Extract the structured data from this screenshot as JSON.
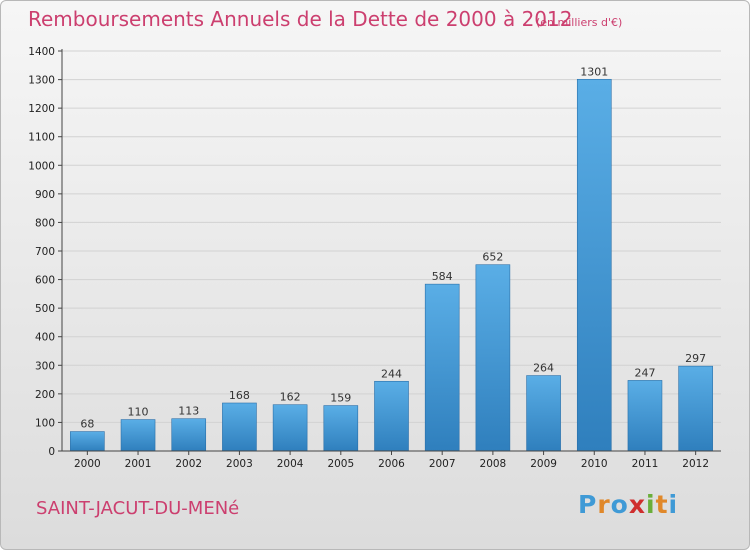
{
  "header": {
    "title": "Remboursements Annuels de la Dette de 2000 à 2012",
    "unit_note": "(en milliers d'€)"
  },
  "footer": {
    "commune": "SAINT-JACUT-DU-MENé",
    "logo_letters": [
      "P",
      "r",
      "o",
      "x",
      "i",
      "t",
      "i"
    ],
    "logo_colors": [
      "#3f9ad6",
      "#e0882a",
      "#3f9ad6",
      "#cf2e2e",
      "#6aae3a",
      "#e0882a",
      "#3f9ad6"
    ]
  },
  "colors": {
    "bar_top": "#5aaee6",
    "bar_bottom": "#2f7fbd",
    "bar_stroke": "#2a6fa8",
    "grid": "#d2d2d2",
    "axis": "#444444",
    "title": "#cc3f6f"
  },
  "chart_data": {
    "type": "bar",
    "title": "Remboursements Annuels de la Dette de 2000 à 2012",
    "subtitle": "(en milliers d'€)",
    "xlabel": "",
    "ylabel": "",
    "categories": [
      "2000",
      "2001",
      "2002",
      "2003",
      "2004",
      "2005",
      "2006",
      "2007",
      "2008",
      "2009",
      "2010",
      "2011",
      "2012"
    ],
    "values": [
      68,
      110,
      113,
      168,
      162,
      159,
      244,
      584,
      652,
      264,
      1301,
      247,
      297
    ],
    "ylim": [
      0,
      1400
    ],
    "yticks": [
      0,
      100,
      200,
      300,
      400,
      500,
      600,
      700,
      800,
      900,
      1000,
      1100,
      1200,
      1300,
      1400
    ],
    "grid": true,
    "legend": "none"
  }
}
